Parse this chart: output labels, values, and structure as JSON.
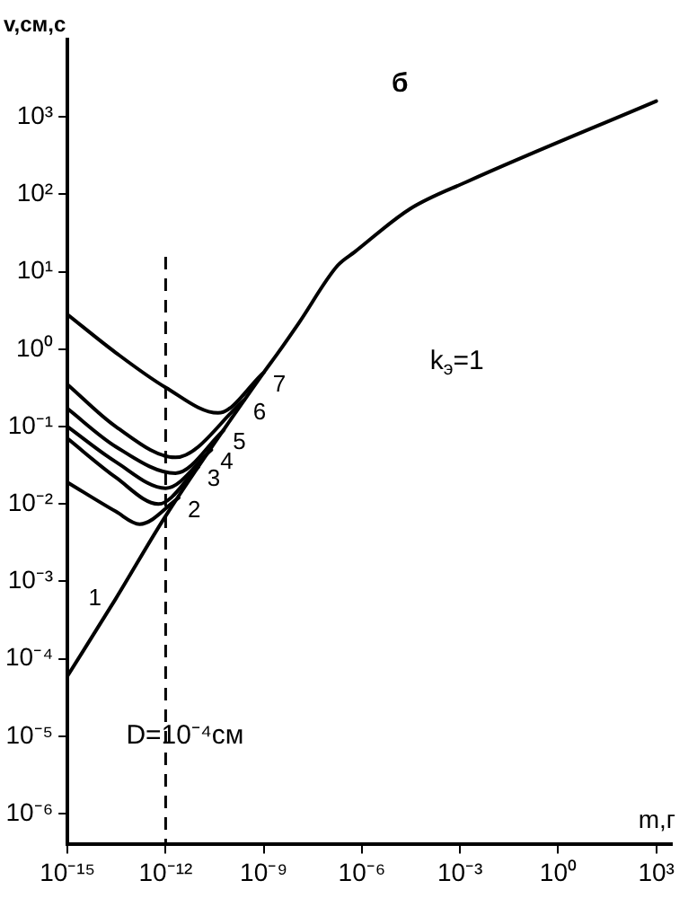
{
  "chart_data": {
    "type": "line",
    "title": "б",
    "xlabel": "m,г",
    "ylabel": "v,см,с",
    "log": "xy",
    "grid": false,
    "legend": false,
    "marker": "none",
    "line_style": "solid",
    "xlim": [
      1e-15,
      3000
    ],
    "ylim": [
      4e-07,
      10000
    ],
    "xticks": [
      {
        "value": 1e-15,
        "label": "10⁻¹⁵"
      },
      {
        "value": 1e-12,
        "label": "10⁻¹²"
      },
      {
        "value": 1e-09,
        "label": "10⁻⁹"
      },
      {
        "value": 1e-06,
        "label": "10⁻⁶"
      },
      {
        "value": 0.001,
        "label": "10⁻³"
      },
      {
        "value": 1,
        "label": "10⁰"
      },
      {
        "value": 1000,
        "label": "10³"
      }
    ],
    "yticks": [
      {
        "value": 1e-06,
        "label": "10⁻⁶"
      },
      {
        "value": 1e-05,
        "label": "10⁻⁵"
      },
      {
        "value": 0.0001,
        "label": "10⁻⁴"
      },
      {
        "value": 0.001,
        "label": "10⁻³"
      },
      {
        "value": 0.01,
        "label": "10⁻²"
      },
      {
        "value": 0.1,
        "label": "10⁻¹"
      },
      {
        "value": 1,
        "label": "10⁰"
      },
      {
        "value": 10,
        "label": "10¹"
      },
      {
        "value": 100,
        "label": "10²"
      },
      {
        "value": 1000,
        "label": "10³"
      }
    ],
    "series": [
      {
        "name": "1",
        "color": "#000000",
        "x": [
          1e-15,
          3e-14,
          1e-12,
          1e-09,
          2.5e-09,
          1.2e-08,
          1.8e-07,
          6e-07,
          3e-05,
          0.0016,
          1000
        ],
        "values": [
          6e-05,
          0.0006,
          0.007,
          0.5,
          0.85,
          2.2,
          12,
          18,
          65,
          145,
          1600
        ]
      },
      {
        "name": "2",
        "color": "#000000",
        "x": [
          1e-15,
          3e-14,
          1.6e-13,
          2.5e-12
        ],
        "values": [
          0.019,
          0.008,
          0.0055,
          0.012
        ]
      },
      {
        "name": "3",
        "color": "#000000",
        "x": [
          1e-15,
          3e-14,
          6e-13,
          1e-11
        ],
        "values": [
          0.07,
          0.022,
          0.01,
          0.03
        ]
      },
      {
        "name": "4",
        "color": "#000000",
        "x": [
          1e-15,
          3e-14,
          1e-12,
          2.5e-11
        ],
        "values": [
          0.1,
          0.035,
          0.016,
          0.05
        ]
      },
      {
        "name": "5",
        "color": "#000000",
        "x": [
          1e-15,
          3e-14,
          2e-12,
          6e-11
        ],
        "values": [
          0.17,
          0.055,
          0.025,
          0.09
        ]
      },
      {
        "name": "6",
        "color": "#000000",
        "x": [
          1e-15,
          3e-14,
          2e-12,
          2.5e-10
        ],
        "values": [
          0.35,
          0.1,
          0.04,
          0.22
        ]
      },
      {
        "name": "7",
        "color": "#000000",
        "x": [
          1e-15,
          3e-14,
          1e-12,
          4e-11,
          1e-09
        ],
        "values": [
          2.8,
          0.9,
          0.32,
          0.15,
          0.5
        ]
      }
    ],
    "ref_lines": [
      {
        "axis": "x",
        "value": 1e-12,
        "line_style": "dashed",
        "color": "#000000"
      }
    ],
    "annotations": [
      "k$_{э}$=1",
      {
        "text": "D=10⁻⁴см",
        "x": 1e-12,
        "y": 1e-05
      }
    ]
  }
}
